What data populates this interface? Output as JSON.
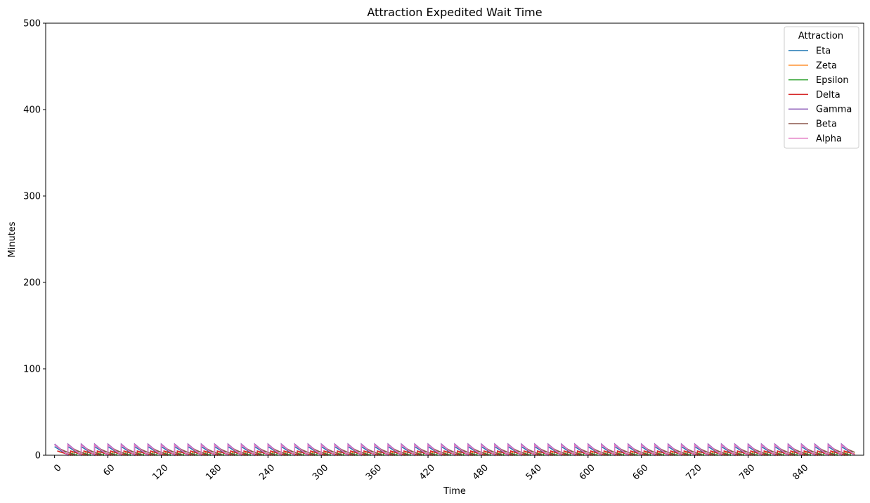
{
  "chart_data": {
    "type": "line",
    "title": "Attraction Expedited Wait Time",
    "xlabel": "Time",
    "ylabel": "Minutes",
    "xlim": [
      -10,
      910
    ],
    "ylim": [
      0,
      500
    ],
    "xticks": [
      0,
      60,
      120,
      180,
      240,
      300,
      360,
      420,
      480,
      540,
      600,
      660,
      720,
      780,
      840
    ],
    "yticks": [
      0,
      100,
      200,
      300,
      400,
      500
    ],
    "legend": {
      "title": "Attraction",
      "position": "top-right"
    },
    "grid": false,
    "series": [
      {
        "name": "Eta",
        "color": "#1f77b4",
        "peak": 10,
        "period": 15,
        "offset": 0,
        "end": 900
      },
      {
        "name": "Zeta",
        "color": "#ff7f0e",
        "peak": 4,
        "period": 15,
        "offset": 5,
        "end": 900
      },
      {
        "name": "Epsilon",
        "color": "#2ca02c",
        "peak": 5,
        "period": 15,
        "offset": 10,
        "end": 900
      },
      {
        "name": "Delta",
        "color": "#d62728",
        "peak": 5,
        "period": 15,
        "offset": 3,
        "end": 900
      },
      {
        "name": "Gamma",
        "color": "#9467bd",
        "peak": 13,
        "period": 15,
        "offset": 0,
        "end": 900
      },
      {
        "name": "Beta",
        "color": "#8c564b",
        "peak": 7,
        "period": 15,
        "offset": 7,
        "end": 900
      },
      {
        "name": "Alpha",
        "color": "#e377c2",
        "peak": 12,
        "period": 15,
        "offset": 0,
        "end": 900
      }
    ]
  }
}
